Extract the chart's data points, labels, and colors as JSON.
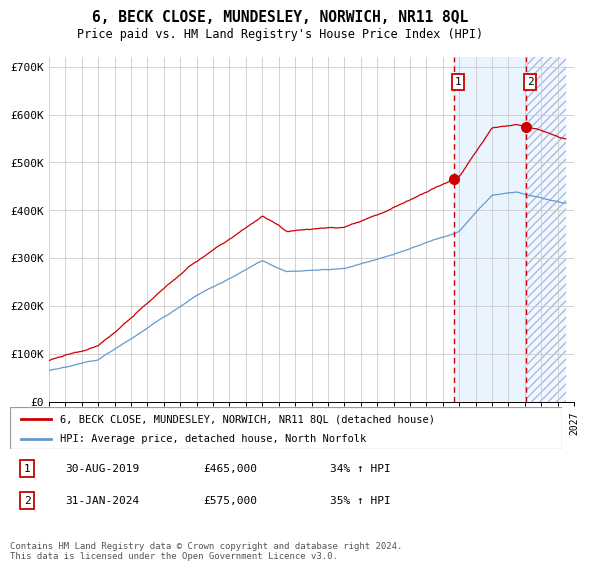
{
  "title": "6, BECK CLOSE, MUNDESLEY, NORWICH, NR11 8QL",
  "subtitle": "Price paid vs. HM Land Registry's House Price Index (HPI)",
  "ylim": [
    0,
    720000
  ],
  "yticks": [
    0,
    100000,
    200000,
    300000,
    400000,
    500000,
    600000,
    700000
  ],
  "ytick_labels": [
    "£0",
    "£100K",
    "£200K",
    "£300K",
    "£400K",
    "£500K",
    "£600K",
    "£700K"
  ],
  "red_line_color": "#cc0000",
  "blue_line_color": "#6699cc",
  "shade_color": "#ddeeff",
  "hatch_color": "#ddeeff",
  "grid_color": "#cccccc",
  "background_color": "#ffffff",
  "legend_label_red": "6, BECK CLOSE, MUNDESLEY, NORWICH, NR11 8QL (detached house)",
  "legend_label_blue": "HPI: Average price, detached house, North Norfolk",
  "sale1_date": "30-AUG-2019",
  "sale1_price": "£465,000",
  "sale1_hpi": "34% ↑ HPI",
  "sale2_date": "31-JAN-2024",
  "sale2_price": "£575,000",
  "sale2_hpi": "35% ↑ HPI",
  "footnote": "Contains HM Land Registry data © Crown copyright and database right 2024.\nThis data is licensed under the Open Government Licence v3.0.",
  "vline1_x": 2019.667,
  "vline2_x": 2024.083,
  "marker1_y": 465000,
  "marker2_y": 575000,
  "xmin": 1995,
  "xmax": 2027,
  "future_start": 2024.083,
  "shade_start": 2019.667
}
